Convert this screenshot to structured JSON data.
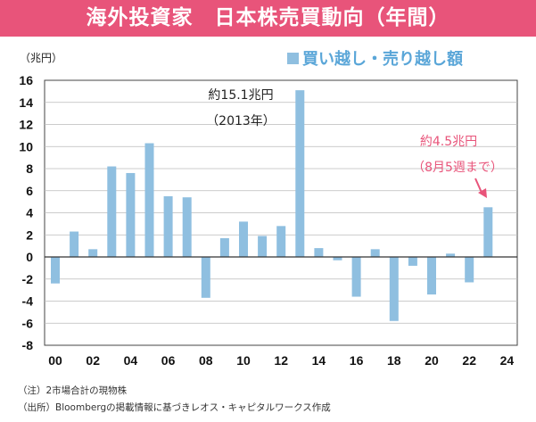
{
  "title": "海外投資家　日本株売買動向（年間）",
  "unit_label": "（兆円）",
  "legend_label": "買い越し・売り越し額",
  "colors": {
    "title_bg": "#e8547a",
    "bar": "#8fbfe0",
    "highlight": "#e8547a",
    "legend_text": "#5aa6d8"
  },
  "chart_data": {
    "type": "bar",
    "title": "",
    "xlabel": "",
    "ylabel": "（兆円）",
    "ylim": [
      -8,
      16
    ],
    "yticks": [
      16,
      14,
      12,
      10,
      8,
      6,
      4,
      2,
      0,
      -2,
      -4,
      -6,
      -8
    ],
    "xtick_labels": [
      "00",
      "02",
      "04",
      "06",
      "08",
      "10",
      "12",
      "14",
      "16",
      "18",
      "20",
      "22",
      "24"
    ],
    "categories": [
      "2000",
      "2001",
      "2002",
      "2003",
      "2004",
      "2005",
      "2006",
      "2007",
      "2008",
      "2009",
      "2010",
      "2011",
      "2012",
      "2013",
      "2014",
      "2015",
      "2016",
      "2017",
      "2018",
      "2019",
      "2020",
      "2021",
      "2022",
      "2023"
    ],
    "series": [
      {
        "name": "買い越し・売り越し額",
        "values": [
          -2.4,
          2.3,
          0.7,
          8.2,
          7.6,
          10.3,
          5.5,
          5.4,
          -3.7,
          1.7,
          3.2,
          1.9,
          2.8,
          15.1,
          0.8,
          -0.3,
          -3.6,
          0.7,
          -5.8,
          -0.8,
          -3.4,
          0.3,
          -2.3,
          4.5
        ]
      }
    ],
    "grid": "horizontal",
    "annotations": [
      {
        "lines": [
          "約15.1兆円",
          "（2013年）"
        ],
        "color": "#222222"
      },
      {
        "lines": [
          "約4.5兆円",
          "（8月5週まで）"
        ],
        "color": "#e8547a"
      }
    ]
  },
  "notes": [
    "（注）2市場合計の現物株",
    "（出所）Bloombergの掲載情報に基づきレオス・キャピタルワークス作成"
  ]
}
